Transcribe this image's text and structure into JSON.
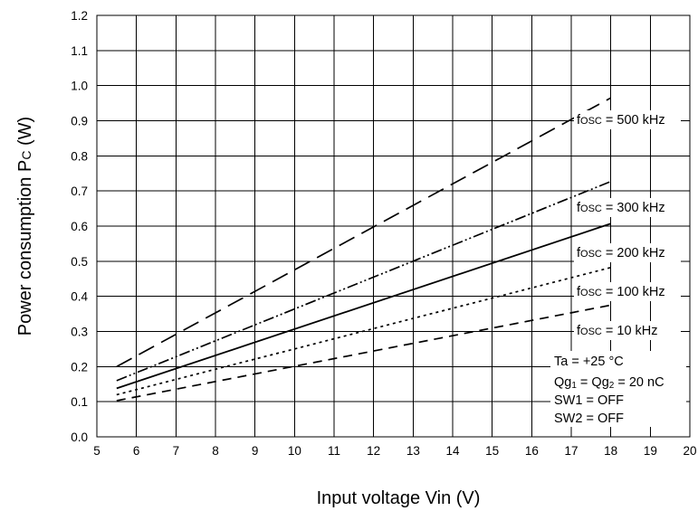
{
  "chart_data": {
    "type": "line",
    "xlabel": "Input voltage Vin (V)",
    "ylabel": "Power consumption PC (W)",
    "ylabel_parts": {
      "main": "Power consumption P",
      "sub": "C",
      "unit": " (W)"
    },
    "xlim": [
      5,
      20
    ],
    "ylim": [
      0.0,
      1.2
    ],
    "x_ticks": [
      "5",
      "6",
      "7",
      "8",
      "9",
      "10",
      "11",
      "12",
      "13",
      "14",
      "15",
      "16",
      "17",
      "18",
      "19",
      "20"
    ],
    "y_ticks": [
      "0.0",
      "0.1",
      "0.2",
      "0.3",
      "0.4",
      "0.5",
      "0.6",
      "0.7",
      "0.8",
      "0.9",
      "1.0",
      "1.1",
      "1.2"
    ],
    "grid": true,
    "series": [
      {
        "name": "fosc = 500 kHz",
        "label_sub": "OSC",
        "label_rest": " = 500 kHz",
        "dash": "long-dash",
        "x": [
          5.5,
          18
        ],
        "y": [
          0.2,
          0.965
        ]
      },
      {
        "name": "fosc = 300 kHz",
        "label_sub": "OSC",
        "label_rest": " = 300 kHz",
        "dash": "dash-dot-dot",
        "x": [
          5.5,
          18
        ],
        "y": [
          0.16,
          0.727
        ]
      },
      {
        "name": "fosc = 200 kHz",
        "label_sub": "OSC",
        "label_rest": " = 200 kHz",
        "dash": "solid",
        "x": [
          5.5,
          18
        ],
        "y": [
          0.138,
          0.607
        ]
      },
      {
        "name": "fosc = 100 kHz",
        "label_sub": "OSC",
        "label_rest": " = 100 kHz",
        "dash": "dotted",
        "x": [
          5.5,
          18
        ],
        "y": [
          0.12,
          0.482
        ]
      },
      {
        "name": "fosc = 10 kHz",
        "label_sub": "OSC",
        "label_rest": " = 10 kHz",
        "dash": "medium-dash",
        "x": [
          5.5,
          18
        ],
        "y": [
          0.103,
          0.375
        ]
      }
    ],
    "conditions": [
      "Ta = +25 °C",
      "Qg1 = Qg2 = 20 nC",
      "SW1 = OFF",
      "SW2 = OFF"
    ],
    "conditions_parts": {
      "ta": "Ta = +25 °C",
      "qg": {
        "a": "Qg",
        "s1": "1",
        "b": " = Qg",
        "s2": "2",
        "c": " = 20 nC"
      },
      "sw1": "SW1 = OFF",
      "sw2": "SW2 = OFF"
    }
  }
}
